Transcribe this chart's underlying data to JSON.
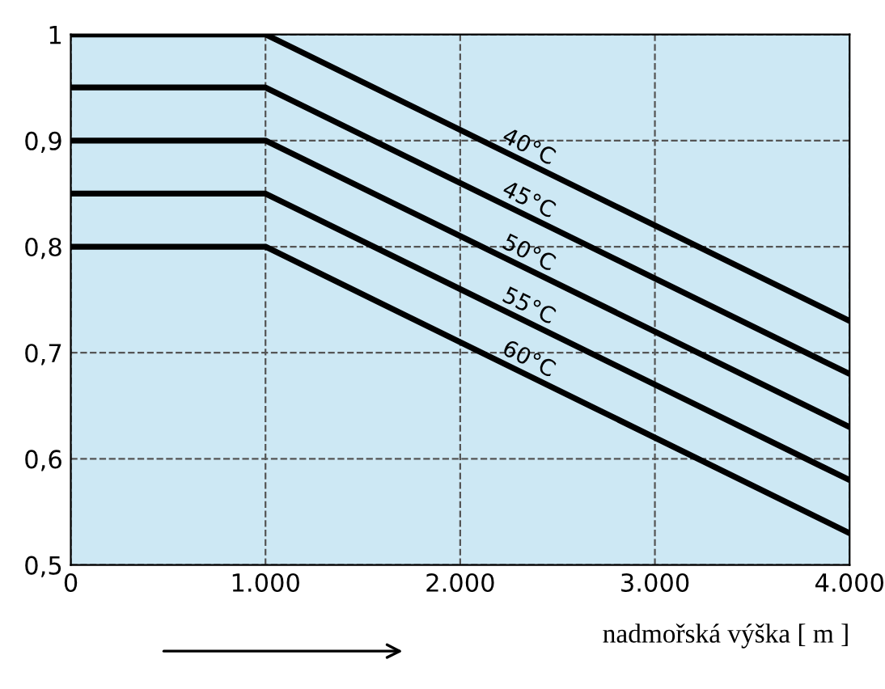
{
  "chart_data": {
    "type": "line",
    "xlabel": "nadmořská výška [ m ]",
    "x": [
      0,
      1000,
      4000
    ],
    "series": [
      {
        "name": "40°C",
        "color": "#000000",
        "values": [
          1,
          1,
          0.73
        ]
      },
      {
        "name": "45°C",
        "color": "#000000",
        "values": [
          0.95,
          0.95,
          0.68
        ]
      },
      {
        "name": "50°C",
        "color": "#000000",
        "values": [
          0.9,
          0.9,
          0.63
        ]
      },
      {
        "name": "55°C",
        "color": "#000000",
        "values": [
          0.85,
          0.85,
          0.58
        ]
      },
      {
        "name": "60°C",
        "color": "#000000",
        "values": [
          0.8,
          0.8,
          0.53
        ]
      }
    ],
    "xlim": [
      0,
      4000
    ],
    "ylim": [
      0.5,
      1
    ],
    "xticks": [
      0,
      {
        "value": 1000,
        "label": "1.000"
      },
      {
        "value": 2000,
        "label": "2.000"
      },
      {
        "value": 3000,
        "label": "3.000"
      },
      {
        "value": 4000,
        "label": "4.000"
      }
    ],
    "yticks": [
      {
        "value": 0.5,
        "label": "0,5"
      },
      {
        "value": 0.6,
        "label": "0,6"
      },
      {
        "value": 0.7,
        "label": "0,7"
      },
      {
        "value": 0.8,
        "label": "0,8"
      },
      {
        "value": 0.9,
        "label": "0,9"
      },
      1
    ],
    "grid": true,
    "line_style": "solid",
    "marker": "none",
    "legend": false
  }
}
